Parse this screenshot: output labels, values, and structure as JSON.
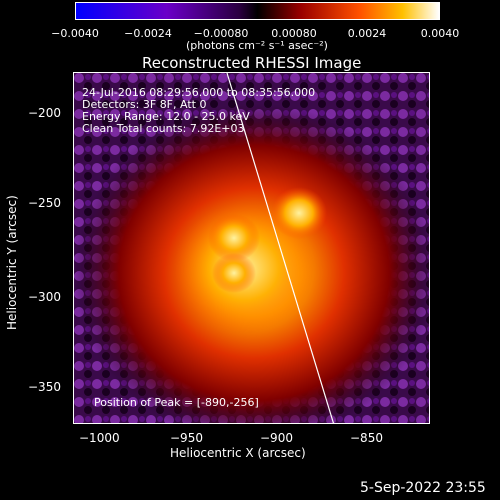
{
  "colorbar": {
    "ticks": [
      "−0.0040",
      "−0.0024",
      "−0.00080",
      "0.00080",
      "0.0024",
      "0.0040"
    ],
    "units_label": "(photons cm⁻² s⁻¹ asec⁻²)"
  },
  "plot": {
    "title": "Reconstructed RHESSI Image",
    "info_lines": [
      "24-Jul-2016 08:29:56.000 to 08:35:56.000",
      "Detectors: 3F 8F, Att 0",
      "Energy Range: 12.0 - 25.0 keV",
      "Clean     Total counts: 7.92E+03"
    ],
    "peak_text": "Position of Peak = [-890,-256]",
    "xlabel": "Heliocentric X (arcsec)",
    "ylabel": "Heliocentric Y (arcsec)",
    "xticks": [
      "−1000",
      "−950",
      "−900",
      "−850"
    ],
    "yticks": [
      "−200",
      "−250",
      "−300",
      "−350"
    ]
  },
  "footer": {
    "date": "5-Sep-2022 23:55"
  },
  "colors": {
    "background": "#000000",
    "limb_line": "#ffffff"
  }
}
